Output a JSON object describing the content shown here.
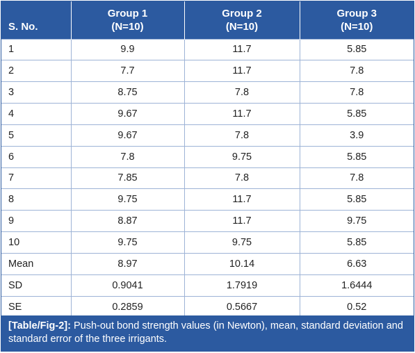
{
  "table": {
    "headers": [
      {
        "line1": "S. No.",
        "line2": ""
      },
      {
        "line1": "Group 1",
        "line2": "(N=10)"
      },
      {
        "line1": "Group 2",
        "line2": "(N=10)"
      },
      {
        "line1": "Group 3",
        "line2": "(N=10)"
      }
    ],
    "rows": [
      [
        "1",
        "9.9",
        "11.7",
        "5.85"
      ],
      [
        "2",
        "7.7",
        "11.7",
        "7.8"
      ],
      [
        "3",
        "8.75",
        "7.8",
        "7.8"
      ],
      [
        "4",
        "9.67",
        "11.7",
        "5.85"
      ],
      [
        "5",
        "9.67",
        "7.8",
        "3.9"
      ],
      [
        "6",
        "7.8",
        "9.75",
        "5.85"
      ],
      [
        "7",
        "7.85",
        "7.8",
        "7.8"
      ],
      [
        "8",
        "9.75",
        "11.7",
        "5.85"
      ],
      [
        "9",
        "8.87",
        "11.7",
        "9.75"
      ],
      [
        "10",
        "9.75",
        "9.75",
        "5.85"
      ],
      [
        "Mean",
        "8.97",
        "10.14",
        "6.63"
      ],
      [
        "SD",
        "0.9041",
        "1.7919",
        "1.6444"
      ],
      [
        "SE",
        "0.2859",
        "0.5667",
        "0.52"
      ]
    ]
  },
  "caption": {
    "tag": "[Table/Fig-2]:",
    "text": " Push-out bond strength values (in Newton), mean, standard deviation and standard error of the three irrigants."
  },
  "colors": {
    "header_bg": "#2c5aa0",
    "grid_line": "#9db3d6",
    "text": "#222222"
  }
}
